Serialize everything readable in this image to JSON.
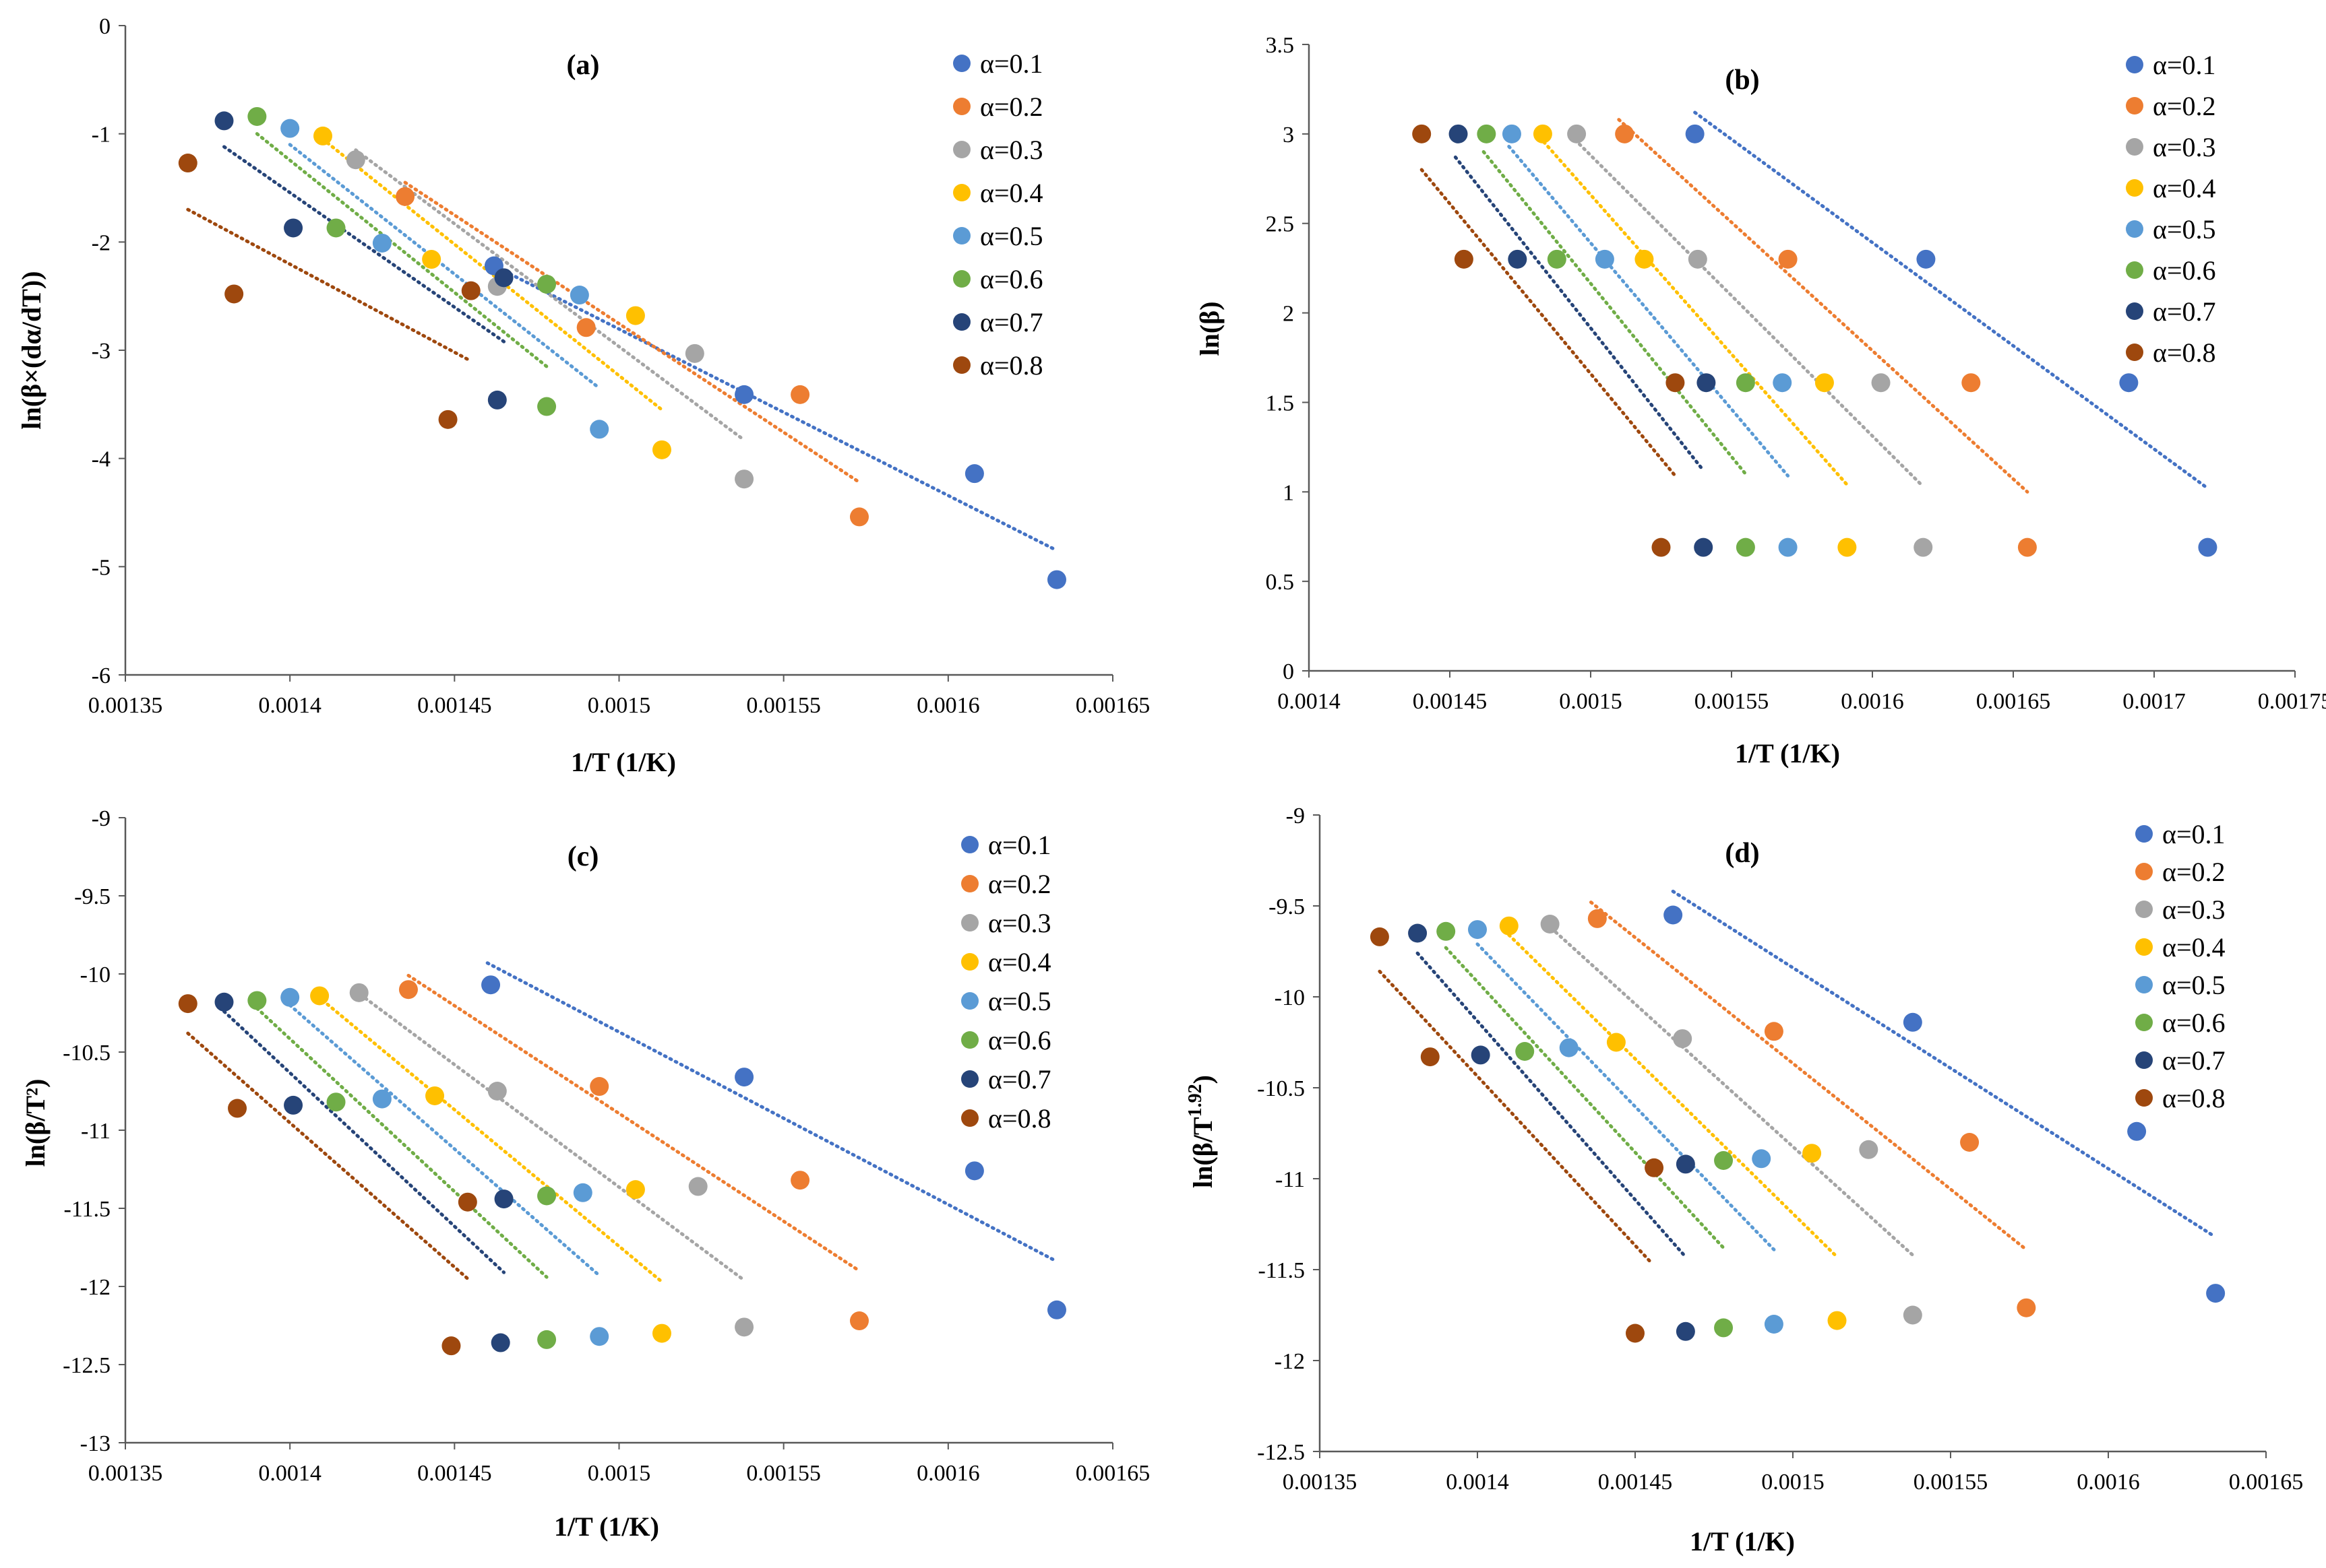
{
  "figure": {
    "colors": {
      "a0.1": "#4472C4",
      "a0.2": "#ED7D31",
      "a0.3": "#A5A5A5",
      "a0.4": "#FFC000",
      "a0.5": "#5B9BD5",
      "a0.6": "#70AD47",
      "a0.7": "#264478",
      "a0.8": "#9E480E"
    }
  },
  "chart_data": [
    {
      "type": "scatter",
      "panel": "(a)",
      "xlabel": "1/T (1/K)",
      "ylabel": "ln(β×(dα/dT))",
      "xlim": [
        0.00135,
        0.00165
      ],
      "ylim": [
        -6,
        0
      ],
      "xticks": [
        "0.00135",
        "0.0014",
        "0.00145",
        "0.0015",
        "0.00155",
        "0.0016",
        "0.00165"
      ],
      "yticks": [
        "-6",
        "-5",
        "-4",
        "-3",
        "-2",
        "-1",
        "0"
      ],
      "series": [
        {
          "name": "α=0.1",
          "key": "a0.1",
          "x": [
            0.001462,
            0.001538,
            0.001608,
            0.001633
          ],
          "y": [
            -2.22,
            -3.41,
            -4.14,
            -5.12
          ],
          "fit": [
            [
              0.001462,
              -2.22
            ],
            [
              0.001633,
              -4.85
            ]
          ]
        },
        {
          "name": "α=0.2",
          "key": "a0.2",
          "x": [
            0.001435,
            0.00149,
            0.001555,
            0.001573
          ],
          "y": [
            -1.58,
            -2.79,
            -3.41,
            -4.54
          ],
          "fit": [
            [
              0.001435,
              -1.45
            ],
            [
              0.001573,
              -4.22
            ]
          ]
        },
        {
          "name": "α=0.3",
          "key": "a0.3",
          "x": [
            0.00142,
            0.001463,
            0.001523,
            0.001538
          ],
          "y": [
            -1.24,
            -2.41,
            -3.03,
            -4.19
          ],
          "fit": [
            [
              0.00142,
              -1.15
            ],
            [
              0.001538,
              -3.83
            ]
          ]
        },
        {
          "name": "α=0.4",
          "key": "a0.4",
          "x": [
            0.00141,
            0.001443,
            0.001505,
            0.001513
          ],
          "y": [
            -1.02,
            -2.16,
            -2.68,
            -3.92
          ],
          "fit": [
            [
              0.00141,
              -1.05
            ],
            [
              0.001513,
              -3.55
            ]
          ]
        },
        {
          "name": "α=0.5",
          "key": "a0.5",
          "x": [
            0.0014,
            0.001428,
            0.001488,
            0.001494
          ],
          "y": [
            -0.95,
            -2.01,
            -2.49,
            -3.73
          ],
          "fit": [
            [
              0.0014,
              -1.1
            ],
            [
              0.001494,
              -3.35
            ]
          ]
        },
        {
          "name": "α=0.6",
          "key": "a0.6",
          "x": [
            0.00139,
            0.001414,
            0.001478,
            0.001478
          ],
          "y": [
            -0.84,
            -1.87,
            -2.39,
            -3.52
          ],
          "fit": [
            [
              0.00139,
              -1.0
            ],
            [
              0.001478,
              -3.15
            ]
          ]
        },
        {
          "name": "α=0.7",
          "key": "a0.7",
          "x": [
            0.00138,
            0.001401,
            0.001465,
            0.001463
          ],
          "y": [
            -0.88,
            -1.87,
            -2.33,
            -3.46
          ],
          "fit": [
            [
              0.00138,
              -1.12
            ],
            [
              0.001465,
              -2.92
            ]
          ]
        },
        {
          "name": "α=0.8",
          "key": "a0.8",
          "x": [
            0.001369,
            0.001383,
            0.001455,
            0.001448
          ],
          "y": [
            -1.27,
            -2.48,
            -2.45,
            -3.64
          ],
          "fit": [
            [
              0.001369,
              -1.7
            ],
            [
              0.001455,
              -3.1
            ]
          ]
        }
      ]
    },
    {
      "type": "scatter",
      "panel": "(b)",
      "xlabel": "1/T (1/K)",
      "ylabel": "ln(β)",
      "xlim": [
        0.0014,
        0.00175
      ],
      "ylim": [
        0,
        3.5
      ],
      "xticks": [
        "0.0014",
        "0.00145",
        "0.0015",
        "0.00155",
        "0.0016",
        "0.00165",
        "0.0017",
        "0.00175"
      ],
      "yticks": [
        "0",
        "0.5",
        "1",
        "1.5",
        "2",
        "2.5",
        "3",
        "3.5"
      ],
      "series": [
        {
          "name": "α=0.1",
          "key": "a0.1",
          "x": [
            0.001537,
            0.001619,
            0.001691,
            0.001719
          ],
          "y": [
            3.0,
            2.3,
            1.61,
            0.69
          ],
          "fit": [
            [
              0.001537,
              3.12
            ],
            [
              0.001719,
              1.02
            ]
          ]
        },
        {
          "name": "α=0.2",
          "key": "a0.2",
          "x": [
            0.001512,
            0.00157,
            0.001635,
            0.001655
          ],
          "y": [
            3.0,
            2.3,
            1.61,
            0.69
          ],
          "fit": [
            [
              0.00151,
              3.08
            ],
            [
              0.001655,
              1.0
            ]
          ]
        },
        {
          "name": "α=0.3",
          "key": "a0.3",
          "x": [
            0.001495,
            0.001538,
            0.001603,
            0.001618
          ],
          "y": [
            3.0,
            2.3,
            1.61,
            0.69
          ],
          "fit": [
            [
              0.001493,
              2.99
            ],
            [
              0.001618,
              1.03
            ]
          ]
        },
        {
          "name": "α=0.4",
          "key": "a0.4",
          "x": [
            0.001483,
            0.001519,
            0.001583,
            0.001591
          ],
          "y": [
            3.0,
            2.3,
            1.61,
            0.69
          ],
          "fit": [
            [
              0.001482,
              2.98
            ],
            [
              0.001591,
              1.04
            ]
          ]
        },
        {
          "name": "α=0.5",
          "key": "a0.5",
          "x": [
            0.001472,
            0.001505,
            0.001568,
            0.00157
          ],
          "y": [
            3.0,
            2.3,
            1.61,
            0.69
          ],
          "fit": [
            [
              0.001471,
              2.93
            ],
            [
              0.00157,
              1.09
            ]
          ]
        },
        {
          "name": "α=0.6",
          "key": "a0.6",
          "x": [
            0.001463,
            0.001488,
            0.001555,
            0.001555
          ],
          "y": [
            3.0,
            2.3,
            1.61,
            0.69
          ],
          "fit": [
            [
              0.001462,
              2.9
            ],
            [
              0.001555,
              1.1
            ]
          ]
        },
        {
          "name": "α=0.7",
          "key": "a0.7",
          "x": [
            0.001453,
            0.001474,
            0.001541,
            0.00154
          ],
          "y": [
            3.0,
            2.3,
            1.61,
            0.69
          ],
          "fit": [
            [
              0.001452,
              2.87
            ],
            [
              0.00154,
              1.12
            ]
          ]
        },
        {
          "name": "α=0.8",
          "key": "a0.8",
          "x": [
            0.00144,
            0.001455,
            0.00153,
            0.001525
          ],
          "y": [
            3.0,
            2.3,
            1.61,
            0.69
          ],
          "fit": [
            [
              0.00144,
              2.8
            ],
            [
              0.00153,
              1.09
            ]
          ]
        }
      ]
    },
    {
      "type": "scatter",
      "panel": "(c)",
      "xlabel": "1/T (1/K)",
      "ylabel": "ln(β/T²)",
      "xlim": [
        0.00135,
        0.00165
      ],
      "ylim": [
        -13,
        -9
      ],
      "xticks": [
        "0.00135",
        "0.0014",
        "0.00145",
        "0.0015",
        "0.00155",
        "0.0016",
        "0.00165"
      ],
      "yticks": [
        "-13",
        "-12.5",
        "-12",
        "-11.5",
        "-11",
        "-10.5",
        "-10",
        "-9.5",
        "-9"
      ],
      "series": [
        {
          "name": "α=0.1",
          "key": "a0.1",
          "x": [
            0.001461,
            0.001538,
            0.001608,
            0.001633
          ],
          "y": [
            -10.07,
            -10.66,
            -11.26,
            -12.15
          ],
          "fit": [
            [
              0.00146,
              -9.93
            ],
            [
              0.001633,
              -11.84
            ]
          ]
        },
        {
          "name": "α=0.2",
          "key": "a0.2",
          "x": [
            0.001436,
            0.001494,
            0.001555,
            0.001573
          ],
          "y": [
            -10.1,
            -10.72,
            -11.32,
            -12.22
          ],
          "fit": [
            [
              0.001436,
              -10.01
            ],
            [
              0.001573,
              -11.9
            ]
          ]
        },
        {
          "name": "α=0.3",
          "key": "a0.3",
          "x": [
            0.001421,
            0.001463,
            0.001524,
            0.001538
          ],
          "y": [
            -10.12,
            -10.75,
            -11.36,
            -12.26
          ],
          "fit": [
            [
              0.00142,
              -10.11
            ],
            [
              0.001538,
              -11.96
            ]
          ]
        },
        {
          "name": "α=0.4",
          "key": "a0.4",
          "x": [
            0.001409,
            0.001444,
            0.001505,
            0.001513
          ],
          "y": [
            -10.14,
            -10.78,
            -11.38,
            -12.3
          ],
          "fit": [
            [
              0.00141,
              -10.17
            ],
            [
              0.001513,
              -11.97
            ]
          ]
        },
        {
          "name": "α=0.5",
          "key": "a0.5",
          "x": [
            0.0014,
            0.001428,
            0.001489,
            0.001494
          ],
          "y": [
            -10.15,
            -10.8,
            -11.4,
            -12.32
          ],
          "fit": [
            [
              0.0014,
              -10.2
            ],
            [
              0.001494,
              -11.93
            ]
          ]
        },
        {
          "name": "α=0.6",
          "key": "a0.6",
          "x": [
            0.00139,
            0.001414,
            0.001478,
            0.001478
          ],
          "y": [
            -10.17,
            -10.82,
            -11.42,
            -12.34
          ],
          "fit": [
            [
              0.00139,
              -10.22
            ],
            [
              0.001478,
              -11.94
            ]
          ]
        },
        {
          "name": "α=0.7",
          "key": "a0.7",
          "x": [
            0.00138,
            0.001401,
            0.001465,
            0.001464
          ],
          "y": [
            -10.18,
            -10.84,
            -11.44,
            -12.36
          ],
          "fit": [
            [
              0.00138,
              -10.24
            ],
            [
              0.001465,
              -11.91
            ]
          ]
        },
        {
          "name": "α=0.8",
          "key": "a0.8",
          "x": [
            0.001369,
            0.001384,
            0.001454,
            0.001449
          ],
          "y": [
            -10.19,
            -10.86,
            -11.46,
            -12.38
          ],
          "fit": [
            [
              0.001369,
              -10.38
            ],
            [
              0.001454,
              -11.95
            ]
          ]
        }
      ]
    },
    {
      "type": "scatter",
      "panel": "(d)",
      "xlabel": "1/T (1/K)",
      "ylabel": "ln(β/T",
      "ylabel_sup": "1.92",
      "ylabel_end": ")",
      "xlim": [
        0.00135,
        0.00165
      ],
      "ylim": [
        -12.5,
        -9
      ],
      "xticks": [
        "0.00135",
        "0.0014",
        "0.00145",
        "0.0015",
        "0.00155",
        "0.0016",
        "0.00165"
      ],
      "yticks": [
        "-12.5",
        "-12",
        "-11.5",
        "-11",
        "-10.5",
        "-10",
        "-9.5",
        "-9"
      ],
      "series": [
        {
          "name": "α=0.1",
          "key": "a0.1",
          "x": [
            0.001462,
            0.001538,
            0.001609,
            0.001634
          ],
          "y": [
            -9.55,
            -10.14,
            -10.74,
            -11.63
          ],
          "fit": [
            [
              0.001462,
              -9.42
            ],
            [
              0.001633,
              -11.31
            ]
          ]
        },
        {
          "name": "α=0.2",
          "key": "a0.2",
          "x": [
            0.001438,
            0.001494,
            0.001556,
            0.001574
          ],
          "y": [
            -9.57,
            -10.19,
            -10.8,
            -11.71
          ],
          "fit": [
            [
              0.001436,
              -9.48
            ],
            [
              0.001574,
              -11.39
            ]
          ]
        },
        {
          "name": "α=0.3",
          "key": "a0.3",
          "x": [
            0.001423,
            0.001465,
            0.001524,
            0.001538
          ],
          "y": [
            -9.6,
            -10.23,
            -10.84,
            -11.75
          ],
          "fit": [
            [
              0.001422,
              -9.6
            ],
            [
              0.001538,
              -11.42
            ]
          ]
        },
        {
          "name": "α=0.4",
          "key": "a0.4",
          "x": [
            0.00141,
            0.001444,
            0.001506,
            0.001514
          ],
          "y": [
            -9.61,
            -10.25,
            -10.86,
            -11.78
          ],
          "fit": [
            [
              0.00141,
              -9.66
            ],
            [
              0.001514,
              -11.43
            ]
          ]
        },
        {
          "name": "α=0.5",
          "key": "a0.5",
          "x": [
            0.0014,
            0.001429,
            0.00149,
            0.001494
          ],
          "y": [
            -9.63,
            -10.28,
            -10.89,
            -11.8
          ],
          "fit": [
            [
              0.0014,
              -9.71
            ],
            [
              0.001494,
              -11.39
            ]
          ]
        },
        {
          "name": "α=0.6",
          "key": "a0.6",
          "x": [
            0.00139,
            0.001415,
            0.001478,
            0.001478
          ],
          "y": [
            -9.64,
            -10.3,
            -10.9,
            -11.82
          ],
          "fit": [
            [
              0.00139,
              -9.73
            ],
            [
              0.001478,
              -11.38
            ]
          ]
        },
        {
          "name": "α=0.7",
          "key": "a0.7",
          "x": [
            0.001381,
            0.001401,
            0.001466,
            0.001466
          ],
          "y": [
            -9.65,
            -10.32,
            -10.92,
            -11.84
          ],
          "fit": [
            [
              0.001381,
              -9.76
            ],
            [
              0.001466,
              -11.43
            ]
          ]
        },
        {
          "name": "α=0.8",
          "key": "a0.8",
          "x": [
            0.001369,
            0.001385,
            0.001456,
            0.00145
          ],
          "y": [
            -9.67,
            -10.33,
            -10.94,
            -11.85
          ],
          "fit": [
            [
              0.001369,
              -9.86
            ],
            [
              0.001455,
              -11.46
            ]
          ]
        }
      ]
    }
  ]
}
